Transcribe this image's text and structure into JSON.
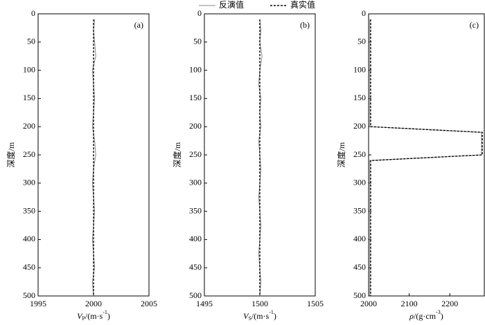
{
  "chart_data": [
    {
      "type": "line",
      "panel_label": "(a)",
      "ylabel": "深度/m",
      "xlabel": {
        "var": "V",
        "sub": "P",
        "unit": "/(m·s",
        "exp": "-1",
        "close": ")"
      },
      "xlim": [
        1995,
        2005
      ],
      "xticks": [
        1995,
        2000,
        2005
      ],
      "ylim": [
        0,
        500
      ],
      "yticks": [
        0,
        50,
        100,
        150,
        200,
        250,
        300,
        350,
        400,
        450,
        500
      ],
      "y_inverted": true,
      "depth": [
        10,
        30,
        50,
        75,
        100,
        125,
        150,
        175,
        200,
        225,
        250,
        275,
        300,
        325,
        350,
        375,
        400,
        425,
        450,
        475,
        500
      ],
      "series": [
        {
          "name": "反演值",
          "color": "#888888",
          "dash": false,
          "values": [
            2000.1,
            2000.0,
            2000.1,
            2000.2,
            1999.9,
            2000.0,
            2000.1,
            2000.0,
            1999.9,
            2000.1,
            2000.2,
            2000.0,
            1999.9,
            2000.0,
            2000.1,
            2000.0,
            1999.9,
            2000.0,
            2000.1,
            1999.9,
            2000.0
          ]
        },
        {
          "name": "真实值",
          "color": "#000000",
          "dash": true,
          "values": [
            2000,
            2000,
            2000,
            2000,
            2000,
            2000,
            2000,
            2000,
            2000,
            2000,
            2000,
            2000,
            2000,
            2000,
            2000,
            2000,
            2000,
            2000,
            2000,
            2000,
            2000
          ]
        }
      ]
    },
    {
      "type": "line",
      "panel_label": "(b)",
      "ylabel": "深度/m",
      "xlabel": {
        "var": "V",
        "sub": "S",
        "unit": "/(m·s",
        "exp": "-1",
        "close": ")"
      },
      "xlim": [
        1495,
        1505
      ],
      "xticks": [
        1495,
        1500,
        1505
      ],
      "ylim": [
        0,
        500
      ],
      "yticks": [
        0,
        50,
        100,
        150,
        200,
        250,
        300,
        350,
        400,
        450,
        500
      ],
      "y_inverted": true,
      "depth": [
        10,
        30,
        50,
        75,
        100,
        125,
        150,
        175,
        200,
        225,
        250,
        275,
        300,
        325,
        350,
        375,
        400,
        425,
        450,
        475,
        500
      ],
      "series": [
        {
          "color": "#888888",
          "dash": false,
          "values": [
            1500.0,
            1500.1,
            1500.0,
            1500.2,
            1500.0,
            1499.9,
            1500.1,
            1500.0,
            1500.1,
            1499.9,
            1500.0,
            1500.1,
            1500.0,
            1499.9,
            1500.0,
            1500.1,
            1500.0,
            1499.9,
            1500.0,
            1500.1,
            1500.0
          ]
        },
        {
          "color": "#000000",
          "dash": true,
          "values": [
            1500,
            1500,
            1500,
            1500,
            1500,
            1500,
            1500,
            1500,
            1500,
            1500,
            1500,
            1500,
            1500,
            1500,
            1500,
            1500,
            1500,
            1500,
            1500,
            1500,
            1500
          ]
        }
      ]
    },
    {
      "type": "line",
      "panel_label": "(c)",
      "ylabel": "深度/m",
      "xlabel": {
        "var": "ρ",
        "unit": "/(g·cm",
        "exp": "-3",
        "close": ")"
      },
      "xlim": [
        2000,
        2285
      ],
      "xticks": [
        2000,
        2100,
        2200
      ],
      "ylim": [
        0,
        500
      ],
      "yticks": [
        0,
        50,
        100,
        150,
        200,
        250,
        300,
        350,
        400,
        450,
        500
      ],
      "y_inverted": true,
      "depth": [
        10,
        200,
        210,
        250,
        260,
        500
      ],
      "series": [
        {
          "color": "#888888",
          "dash": false,
          "values": [
            2003,
            2003,
            2278,
            2278,
            2003,
            2003
          ]
        },
        {
          "color": "#000000",
          "dash": true,
          "values": [
            2005,
            2005,
            2280,
            2280,
            2005,
            2005
          ]
        }
      ]
    }
  ]
}
